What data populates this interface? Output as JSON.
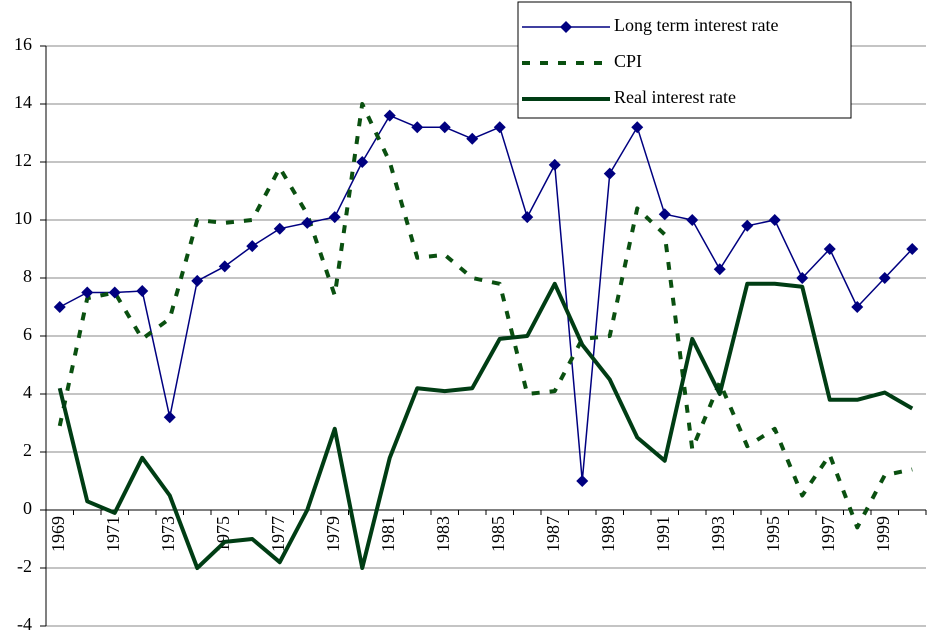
{
  "chart_data": {
    "type": "line",
    "categories": [
      "1969",
      null,
      "1971",
      null,
      "1973",
      null,
      "1975",
      null,
      "1977",
      null,
      "1979",
      null,
      "1981",
      null,
      "1983",
      null,
      "1985",
      null,
      "1987",
      null,
      "1989",
      null,
      "1991",
      null,
      "1993",
      null,
      "1995",
      null,
      "1997",
      null,
      "1999",
      null
    ],
    "series": [
      {
        "name": "Long term interest rate",
        "color": "#000080",
        "style": "solid-diamond",
        "values": [
          7.0,
          7.5,
          7.5,
          7.55,
          3.2,
          7.9,
          8.4,
          9.1,
          9.7,
          9.9,
          10.1,
          12.0,
          13.6,
          13.2,
          13.2,
          12.8,
          13.2,
          10.1,
          11.9,
          1.0,
          11.6,
          13.2,
          10.2,
          10.0,
          8.3,
          9.8,
          10.0,
          8.0,
          9.0,
          7.0,
          8.0,
          9.0
        ]
      },
      {
        "name": "CPI",
        "color": "#0a5010",
        "style": "dashed",
        "values": [
          2.9,
          7.3,
          7.5,
          5.9,
          6.6,
          10.0,
          9.9,
          10.0,
          11.8,
          10.2,
          7.4,
          14.0,
          12.0,
          8.7,
          8.8,
          8.0,
          7.8,
          4.0,
          4.1,
          5.9,
          6.0,
          10.4,
          9.5,
          2.1,
          4.4,
          2.2,
          2.8,
          0.5,
          1.9,
          -0.6,
          1.2,
          1.4
        ]
      },
      {
        "name": "Real interest rate",
        "color": "#003d14",
        "style": "thick",
        "values": [
          4.2,
          0.3,
          -0.1,
          1.8,
          0.5,
          -2.0,
          -1.1,
          -1.0,
          -1.8,
          0.0,
          2.8,
          -2.0,
          1.8,
          4.2,
          4.1,
          4.2,
          5.9,
          6.0,
          7.8,
          5.7,
          4.5,
          2.5,
          1.7,
          5.9,
          4.0,
          7.8,
          7.8,
          7.7,
          3.8,
          3.8,
          4.05,
          3.5
        ]
      }
    ],
    "ylim": [
      -4,
      16
    ],
    "yticks": [
      -4,
      -2,
      0,
      2,
      4,
      6,
      8,
      10,
      12,
      14,
      16
    ],
    "grid": true,
    "legend": "top-right"
  }
}
